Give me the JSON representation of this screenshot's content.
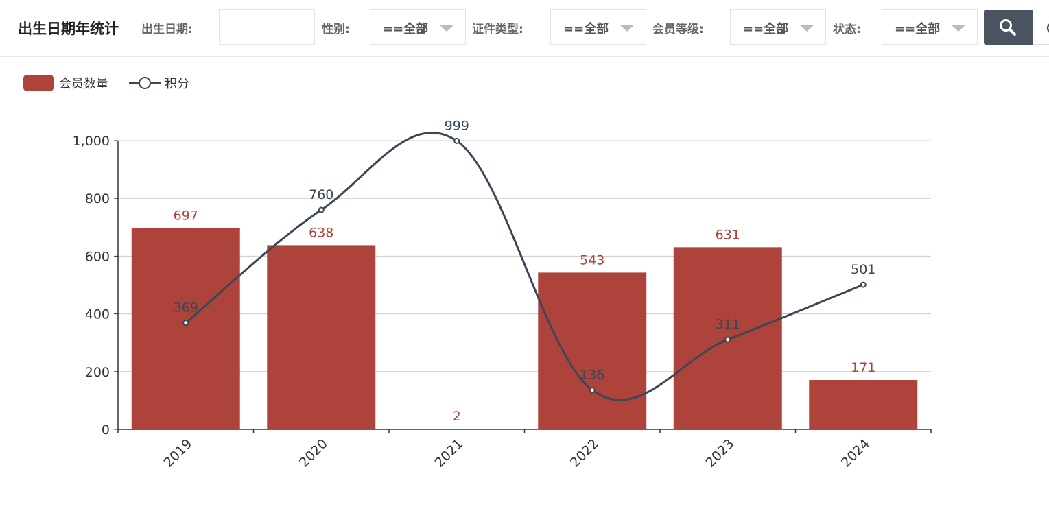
{
  "header": {
    "title": "出生日期年统计",
    "filters": {
      "birthdate_label": "出生日期:",
      "birthdate_value": "",
      "gender_label": "性别:",
      "gender_value": "==全部",
      "idtype_label": "证件类型:",
      "idtype_value": "==全部",
      "level_label": "会员等级:",
      "level_value": "==全部",
      "status_label": "状态:",
      "status_value": "==全部"
    },
    "search_icon": "search-icon",
    "reset_icon": "refresh-icon"
  },
  "colors": {
    "bar": "#ad433a",
    "line": "#394757",
    "axis": "#333333",
    "grid": "#cccccc"
  },
  "chart_data": {
    "type": "bar",
    "categories": [
      "2019",
      "2020",
      "2021",
      "2022",
      "2023",
      "2024"
    ],
    "series": [
      {
        "name": "会员数量",
        "type": "bar",
        "values": [
          697,
          638,
          2,
          543,
          631,
          171
        ]
      },
      {
        "name": "积分",
        "type": "line",
        "smooth": true,
        "values": [
          369,
          760,
          999,
          136,
          311,
          501
        ]
      }
    ],
    "ylim": [
      0,
      1000
    ],
    "yticks": [
      "0",
      "200",
      "400",
      "600",
      "800",
      "1,000"
    ],
    "grid": true,
    "legend_position": "top-left",
    "xlabel_rotation": "45deg"
  }
}
